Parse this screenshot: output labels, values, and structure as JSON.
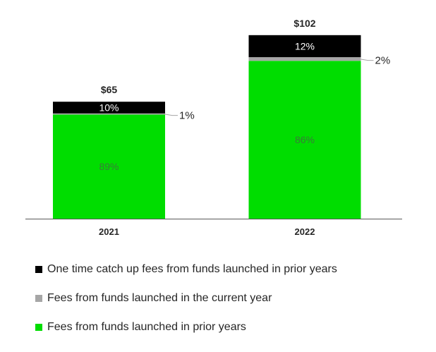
{
  "chart_data": {
    "type": "bar",
    "stacked": true,
    "title": "",
    "xlabel": "",
    "ylabel": "",
    "ylim": [
      0,
      110
    ],
    "categories": [
      "2021",
      "2022"
    ],
    "totals": [
      65,
      102
    ],
    "total_labels": [
      "$65",
      "$102"
    ],
    "series": [
      {
        "name": "Fees from funds launched in prior years",
        "values": [
          57.85,
          87.72
        ],
        "labels": [
          "89%",
          "86%"
        ],
        "color": "#00dd00"
      },
      {
        "name": "Fees from funds launched in the current year",
        "values": [
          0.65,
          2.04
        ],
        "labels": [
          "1%",
          "2%"
        ],
        "color": "#a6a6a6"
      },
      {
        "name": "One time catch up fees from funds launched in prior years",
        "values": [
          6.5,
          12.24
        ],
        "labels": [
          "10%",
          "12%"
        ],
        "color": "#000000"
      }
    ],
    "legend_position": "bottom-left",
    "grid": false
  }
}
